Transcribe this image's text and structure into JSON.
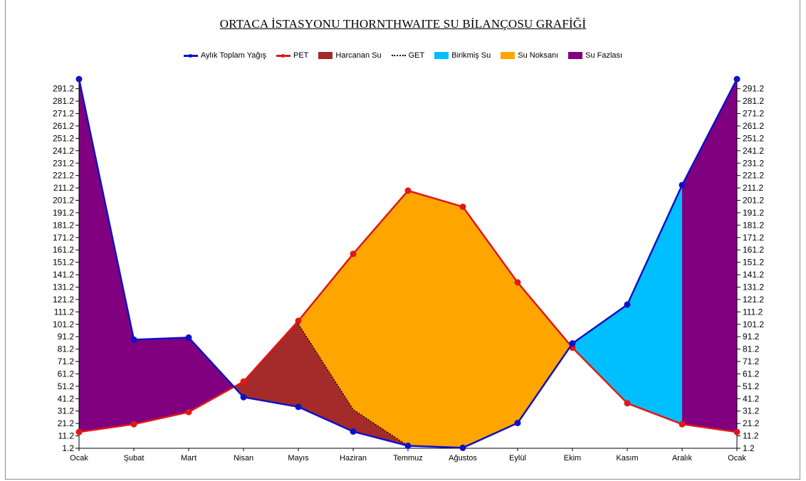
{
  "chart_data": {
    "type": "line",
    "title": "ORTACA İSTASYONU THORNTHWAITE SU BİLANÇOSU GRAFİĞİ",
    "xlabel": "",
    "ylabel": "",
    "categories": [
      "Ocak",
      "Şubat",
      "Mart",
      "Nisan",
      "Mayıs",
      "Haziran",
      "Temmuz",
      "Ağustos",
      "Eylül",
      "Ekim",
      "Kasım",
      "Aralık",
      "Ocak"
    ],
    "y_ticks": [
      "1.2",
      "11.2",
      "21.2",
      "31.2",
      "41.2",
      "51.2",
      "61.2",
      "71.2",
      "81.2",
      "91.2",
      "101.2",
      "111.2",
      "121.2",
      "131.2",
      "141.2",
      "151.2",
      "161.2",
      "171.2",
      "181.2",
      "191.2",
      "201.2",
      "211.2",
      "221.2",
      "231.2",
      "241.2",
      "251.2",
      "261.2",
      "271.2",
      "281.2",
      "291.2"
    ],
    "ylim": [
      1.2,
      296.2
    ],
    "legend_position": "top-center",
    "grid": false,
    "series": [
      {
        "name": "Aylık Toplam Yağış",
        "kind": "line",
        "color": "#1010c8",
        "values": [
          299.0,
          88.8,
          90.5,
          42.4,
          34.6,
          14.7,
          3.2,
          1.6,
          21.6,
          85.8,
          117.1,
          213.5,
          299.0
        ]
      },
      {
        "name": "PET",
        "kind": "line",
        "color": "#e01818",
        "values": [
          14.3,
          20.6,
          30.4,
          55.0,
          104.0,
          158.0,
          209.0,
          196.0,
          135.0,
          82.3,
          37.5,
          20.6,
          14.3
        ]
      },
      {
        "name": "GET",
        "kind": "dotted",
        "color": "#000000",
        "values": [
          null,
          null,
          null,
          null,
          101.5,
          32.5,
          3.2,
          null,
          null,
          null,
          null,
          null,
          null
        ]
      }
    ],
    "areas": [
      {
        "name": "Harcanan Su",
        "color": "#a52a2a"
      },
      {
        "name": "Birikmiş Su",
        "color": "#00bfff"
      },
      {
        "name": "Su Noksanı",
        "color": "#ffa500"
      },
      {
        "name": "Su Fazlası",
        "color": "#800080"
      }
    ],
    "legend_order": [
      "Aylık Toplam Yağış",
      "PET",
      "Harcanan Su",
      "GET",
      "Birikmiş Su",
      "Su Noksanı",
      "Su Fazlası"
    ]
  }
}
